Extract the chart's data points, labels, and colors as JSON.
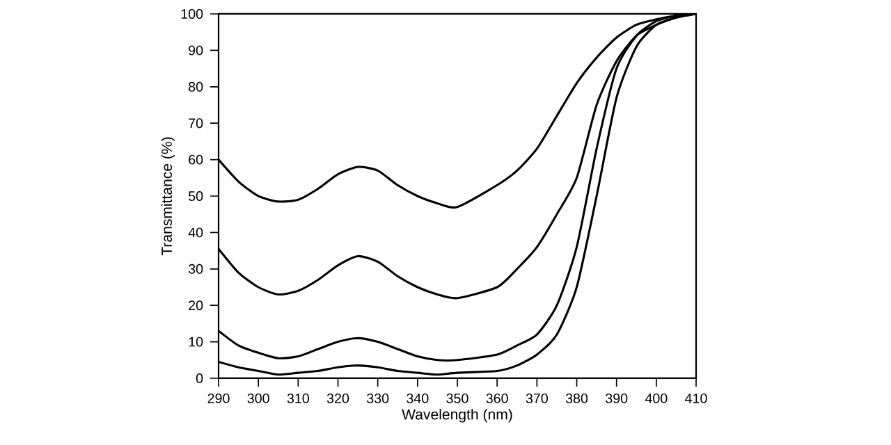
{
  "chart_data": {
    "type": "line",
    "xlabel": "Wavelength (nm)",
    "ylabel": "Transmittance (%)",
    "xlim": [
      290,
      410
    ],
    "ylim": [
      0,
      100
    ],
    "xticks": [
      290,
      300,
      310,
      320,
      330,
      340,
      350,
      360,
      370,
      380,
      390,
      400,
      410
    ],
    "yticks": [
      0,
      10,
      20,
      30,
      40,
      50,
      60,
      70,
      80,
      90,
      100
    ],
    "grid": false,
    "marker": "none",
    "line_style": "solid",
    "x": [
      290,
      295,
      300,
      305,
      310,
      315,
      320,
      325,
      330,
      335,
      340,
      345,
      350,
      360,
      365,
      370,
      375,
      380,
      385,
      390,
      395,
      400,
      405,
      410
    ],
    "series": [
      {
        "color": "#000000",
        "values": [
          60,
          54,
          50,
          48.5,
          49,
          52,
          56,
          58,
          57,
          53,
          50,
          48,
          47,
          53,
          57,
          63,
          72,
          81,
          88,
          93.5,
          97,
          98.5,
          99.5,
          100
        ]
      },
      {
        "color": "#000000",
        "values": [
          35.5,
          29,
          25,
          23,
          24,
          27,
          31,
          33.5,
          32,
          28,
          25,
          23,
          22,
          25,
          30,
          36,
          45,
          55,
          75,
          87,
          94,
          97,
          99,
          100
        ]
      },
      {
        "color": "#000000",
        "values": [
          13,
          9,
          7,
          5.5,
          6,
          8,
          10,
          11,
          10,
          8,
          6,
          5,
          5,
          6.5,
          9,
          12,
          20,
          36,
          63,
          85,
          94,
          98,
          99.5,
          100
        ]
      },
      {
        "color": "#000000",
        "values": [
          4.5,
          3,
          2,
          1,
          1.5,
          2,
          3,
          3.5,
          3,
          2,
          1.5,
          1,
          1.5,
          2,
          3.5,
          6.5,
          12,
          25,
          50,
          77,
          91,
          97,
          99,
          100
        ]
      }
    ]
  }
}
